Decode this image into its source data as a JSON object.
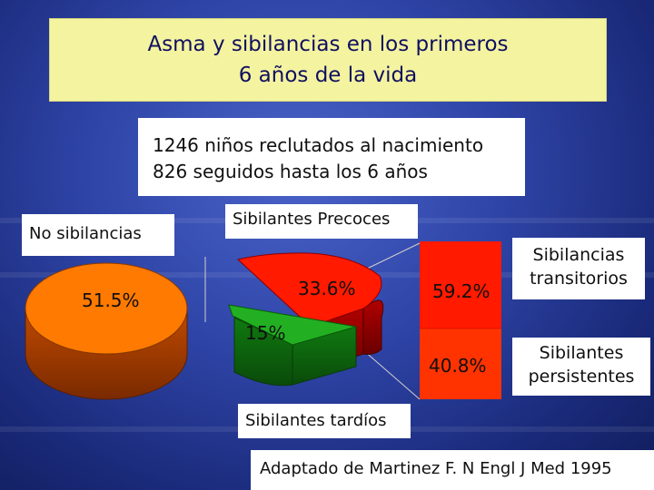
{
  "header": {
    "title_line1": "Asma y sibilancias en los primeros",
    "title_line2": "6 años de la vida"
  },
  "info": {
    "line1": "1246 niños reclutados al nacimiento",
    "line2": "826 seguidos hasta los 6 años"
  },
  "source": "Adaptado de Martinez F. N Engl J Med 1995",
  "chart_data": [
    {
      "type": "pie",
      "title": "",
      "slices": [
        {
          "name": "No sibilancias",
          "value": 51.5,
          "label": "51.5%",
          "color": "#ff7a00"
        },
        {
          "name": "Sibilantes Precoces",
          "value": 33.6,
          "label": "33.6%",
          "color": "#ff1a00"
        },
        {
          "name": "Sibilantes tardíos",
          "value": 15,
          "label": "15%",
          "color": "#22b022"
        }
      ]
    },
    {
      "type": "bar",
      "stacked": true,
      "title": "",
      "categories": [
        "Sibilantes Precoces"
      ],
      "series": [
        {
          "name": "Sibilancias transitorios",
          "values": [
            59.2
          ],
          "label": "59.2%",
          "color": "#ff1a00"
        },
        {
          "name": "Sibilantes persistentes",
          "values": [
            40.8
          ],
          "label": "40.8%",
          "color": "#ff3300"
        }
      ]
    }
  ]
}
